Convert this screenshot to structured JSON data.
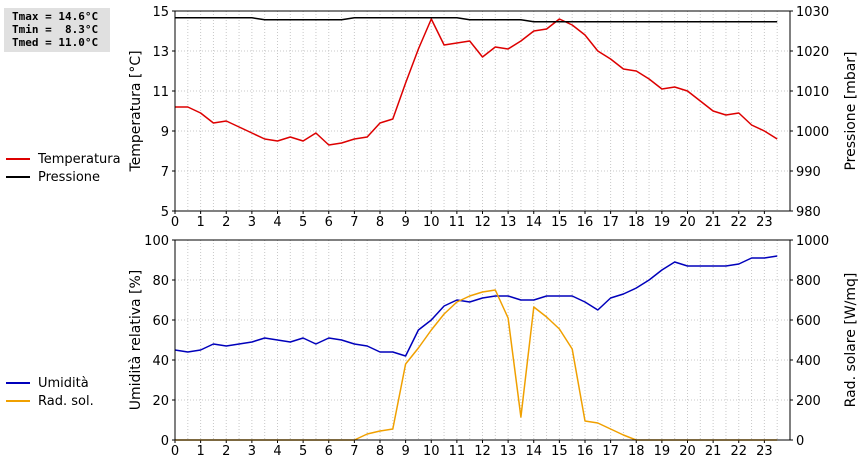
{
  "stats": {
    "tmax": "Tmax = 14.6°C",
    "tmin": "Tmin =  8.3°C",
    "tmed": "Tmed = 11.0°C"
  },
  "chart_data": [
    {
      "type": "line",
      "x_ticks": [
        "0",
        "1",
        "2",
        "3",
        "4",
        "5",
        "6",
        "7",
        "8",
        "9",
        "10",
        "11",
        "12",
        "13",
        "14",
        "15",
        "16",
        "17",
        "18",
        "19",
        "20",
        "21",
        "22",
        "23"
      ],
      "xlim": [
        0,
        24
      ],
      "ylabel": "Temperatura [°C]",
      "ylim": [
        5,
        15
      ],
      "y_ticks": [
        "5",
        "7",
        "9",
        "11",
        "13",
        "15"
      ],
      "y2label": "Pressione [mbar]",
      "y2lim": [
        980,
        1030
      ],
      "y2_ticks": [
        "980",
        "990",
        "1000",
        "1010",
        "1020",
        "1030"
      ],
      "grid": true,
      "legend_position": "left",
      "series": [
        {
          "name": "Temperatura",
          "axis": "left",
          "color": "#dd0000",
          "x": [
            0,
            0.5,
            1,
            1.5,
            2,
            2.5,
            3,
            3.5,
            4,
            4.5,
            5,
            5.5,
            6,
            6.5,
            7,
            7.5,
            8,
            8.5,
            9,
            9.5,
            10,
            10.5,
            11,
            11.5,
            12,
            12.5,
            13,
            13.5,
            14,
            14.5,
            15,
            15.5,
            16,
            16.5,
            17,
            17.5,
            18,
            18.5,
            19,
            19.5,
            20,
            20.5,
            21,
            21.5,
            22,
            22.5,
            23,
            23.5
          ],
          "values": [
            10.2,
            10.2,
            9.9,
            9.4,
            9.5,
            9.2,
            8.9,
            8.6,
            8.5,
            8.7,
            8.5,
            8.9,
            8.3,
            8.4,
            8.6,
            8.7,
            9.4,
            9.6,
            11.4,
            13.1,
            14.6,
            13.3,
            13.4,
            13.5,
            12.7,
            13.2,
            13.1,
            13.5,
            14.0,
            14.1,
            14.6,
            14.3,
            13.8,
            13.0,
            12.6,
            12.1,
            12.0,
            11.6,
            11.1,
            11.2,
            11.0,
            10.5,
            10.0,
            9.8,
            9.9,
            9.3,
            9.0,
            8.6
          ]
        },
        {
          "name": "Pressione",
          "axis": "right",
          "color": "#000000",
          "x": [
            0,
            0.5,
            1,
            1.5,
            2,
            2.5,
            3,
            3.5,
            4,
            4.5,
            5,
            5.5,
            6,
            6.5,
            7,
            7.5,
            8,
            8.5,
            9,
            9.5,
            10,
            10.5,
            11,
            11.5,
            12,
            12.5,
            13,
            13.5,
            14,
            14.5,
            15,
            15.5,
            16,
            16.5,
            17,
            17.5,
            18,
            18.5,
            19,
            19.5,
            20,
            20.5,
            21,
            21.5,
            22,
            22.5,
            23,
            23.5
          ],
          "values": [
            1028.3,
            1028.3,
            1028.3,
            1028.3,
            1028.3,
            1028.3,
            1028.3,
            1027.8,
            1027.8,
            1027.8,
            1027.8,
            1027.8,
            1027.8,
            1027.8,
            1028.3,
            1028.3,
            1028.3,
            1028.3,
            1028.3,
            1028.3,
            1028.3,
            1028.3,
            1028.3,
            1027.8,
            1027.8,
            1027.8,
            1027.8,
            1027.8,
            1027.3,
            1027.3,
            1027.3,
            1027.3,
            1027.3,
            1027.3,
            1027.3,
            1027.3,
            1027.3,
            1027.3,
            1027.3,
            1027.3,
            1027.3,
            1027.3,
            1027.3,
            1027.3,
            1027.3,
            1027.3,
            1027.3,
            1027.3
          ]
        }
      ]
    },
    {
      "type": "line",
      "x_ticks": [
        "0",
        "1",
        "2",
        "3",
        "4",
        "5",
        "6",
        "7",
        "8",
        "9",
        "10",
        "11",
        "12",
        "13",
        "14",
        "15",
        "16",
        "17",
        "18",
        "19",
        "20",
        "21",
        "22",
        "23"
      ],
      "xlim": [
        0,
        24
      ],
      "ylabel": "Umidità relativa [%]",
      "ylim": [
        0,
        100
      ],
      "y_ticks": [
        "0",
        "20",
        "40",
        "60",
        "80",
        "100"
      ],
      "y2label": "Rad. solare [W/mq]",
      "y2lim": [
        0,
        1000
      ],
      "y2_ticks": [
        "0",
        "200",
        "400",
        "600",
        "800",
        "1000"
      ],
      "grid": true,
      "legend_position": "left",
      "series": [
        {
          "name": "Umidità",
          "axis": "left",
          "color": "#0000bb",
          "x": [
            0,
            0.5,
            1,
            1.5,
            2,
            2.5,
            3,
            3.5,
            4,
            4.5,
            5,
            5.5,
            6,
            6.5,
            7,
            7.5,
            8,
            8.5,
            9,
            9.5,
            10,
            10.5,
            11,
            11.5,
            12,
            12.5,
            13,
            13.5,
            14,
            14.5,
            15,
            15.5,
            16,
            16.5,
            17,
            17.5,
            18,
            18.5,
            19,
            19.5,
            20,
            20.5,
            21,
            21.5,
            22,
            22.5,
            23,
            23.5
          ],
          "values": [
            45,
            44,
            45,
            48,
            47,
            48,
            49,
            51,
            50,
            49,
            51,
            48,
            51,
            50,
            48,
            47,
            44,
            44,
            42,
            55,
            60,
            67,
            70,
            69,
            71,
            72,
            72,
            70,
            70,
            72,
            72,
            72,
            69,
            65,
            71,
            73,
            76,
            80,
            85,
            89,
            87,
            87,
            87,
            87,
            88,
            91,
            91,
            92
          ]
        },
        {
          "name": "Rad. sol.",
          "axis": "right",
          "color": "#f0a000",
          "x": [
            0,
            0.5,
            1,
            1.5,
            2,
            2.5,
            3,
            3.5,
            4,
            4.5,
            5,
            5.5,
            6,
            6.5,
            7,
            7.5,
            8,
            8.5,
            9,
            9.5,
            10,
            10.5,
            11,
            11.5,
            12,
            12.5,
            13,
            13.5,
            14,
            14.5,
            15,
            15.5,
            16,
            16.5,
            17,
            17.5,
            18,
            18.5,
            19,
            19.5,
            20,
            20.5,
            21,
            21.5,
            22,
            22.5,
            23,
            23.5
          ],
          "values": [
            0,
            0,
            0,
            0,
            0,
            0,
            0,
            0,
            0,
            0,
            0,
            0,
            0,
            0,
            0,
            30,
            45,
            55,
            380,
            460,
            550,
            630,
            690,
            720,
            740,
            750,
            610,
            115,
            665,
            615,
            555,
            455,
            95,
            85,
            55,
            25,
            0,
            0,
            0,
            0,
            0,
            0,
            0,
            0,
            0,
            0,
            0,
            0
          ]
        }
      ]
    }
  ]
}
